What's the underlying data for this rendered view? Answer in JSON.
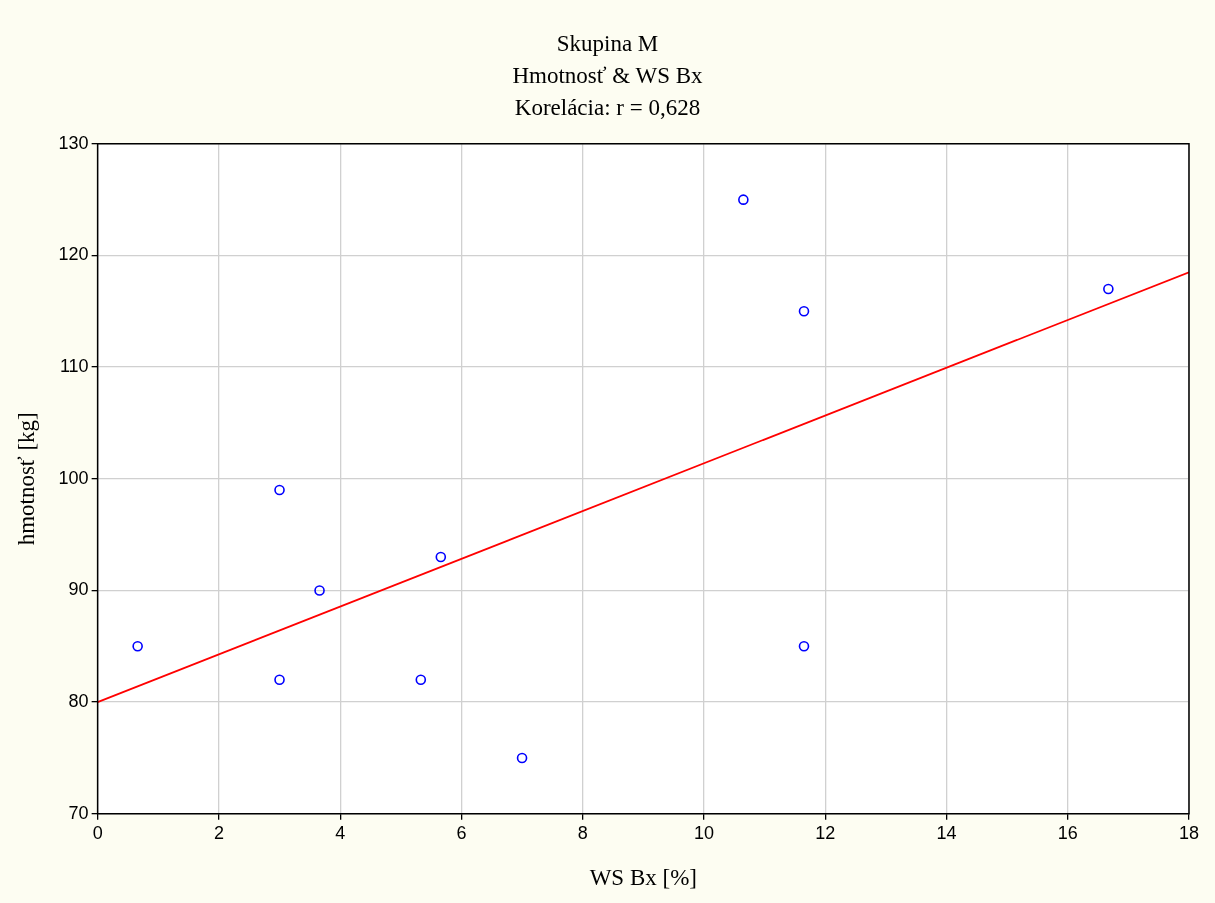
{
  "chart_data": {
    "type": "scatter",
    "title": "Skupina M",
    "subtitle": "Hmotnosť & WS Bx",
    "annotations": [
      "Korelácia: r = 0,628"
    ],
    "xlabel": "WS Bx [%]",
    "ylabel": "hmotnosť [kg]",
    "xlim": [
      0,
      18
    ],
    "ylim": [
      70,
      130
    ],
    "xticks": [
      0,
      2,
      4,
      6,
      8,
      10,
      12,
      14,
      16,
      18
    ],
    "yticks": [
      70,
      80,
      90,
      100,
      110,
      120,
      130
    ],
    "grid": true,
    "marker": "circle",
    "series": [
      {
        "color": "#0000ff",
        "x": [
          0.66,
          3,
          3,
          3.66,
          5.33,
          5.66,
          7,
          10.65,
          11.65,
          11.65,
          16.67
        ],
        "values": [
          85,
          99,
          82,
          90,
          82,
          93,
          75,
          125,
          115,
          85,
          117
        ]
      },
      {
        "type": "line",
        "color": "#ff0000",
        "marker": "none",
        "x": [
          0,
          18
        ],
        "values": [
          80,
          118.5
        ]
      }
    ]
  }
}
